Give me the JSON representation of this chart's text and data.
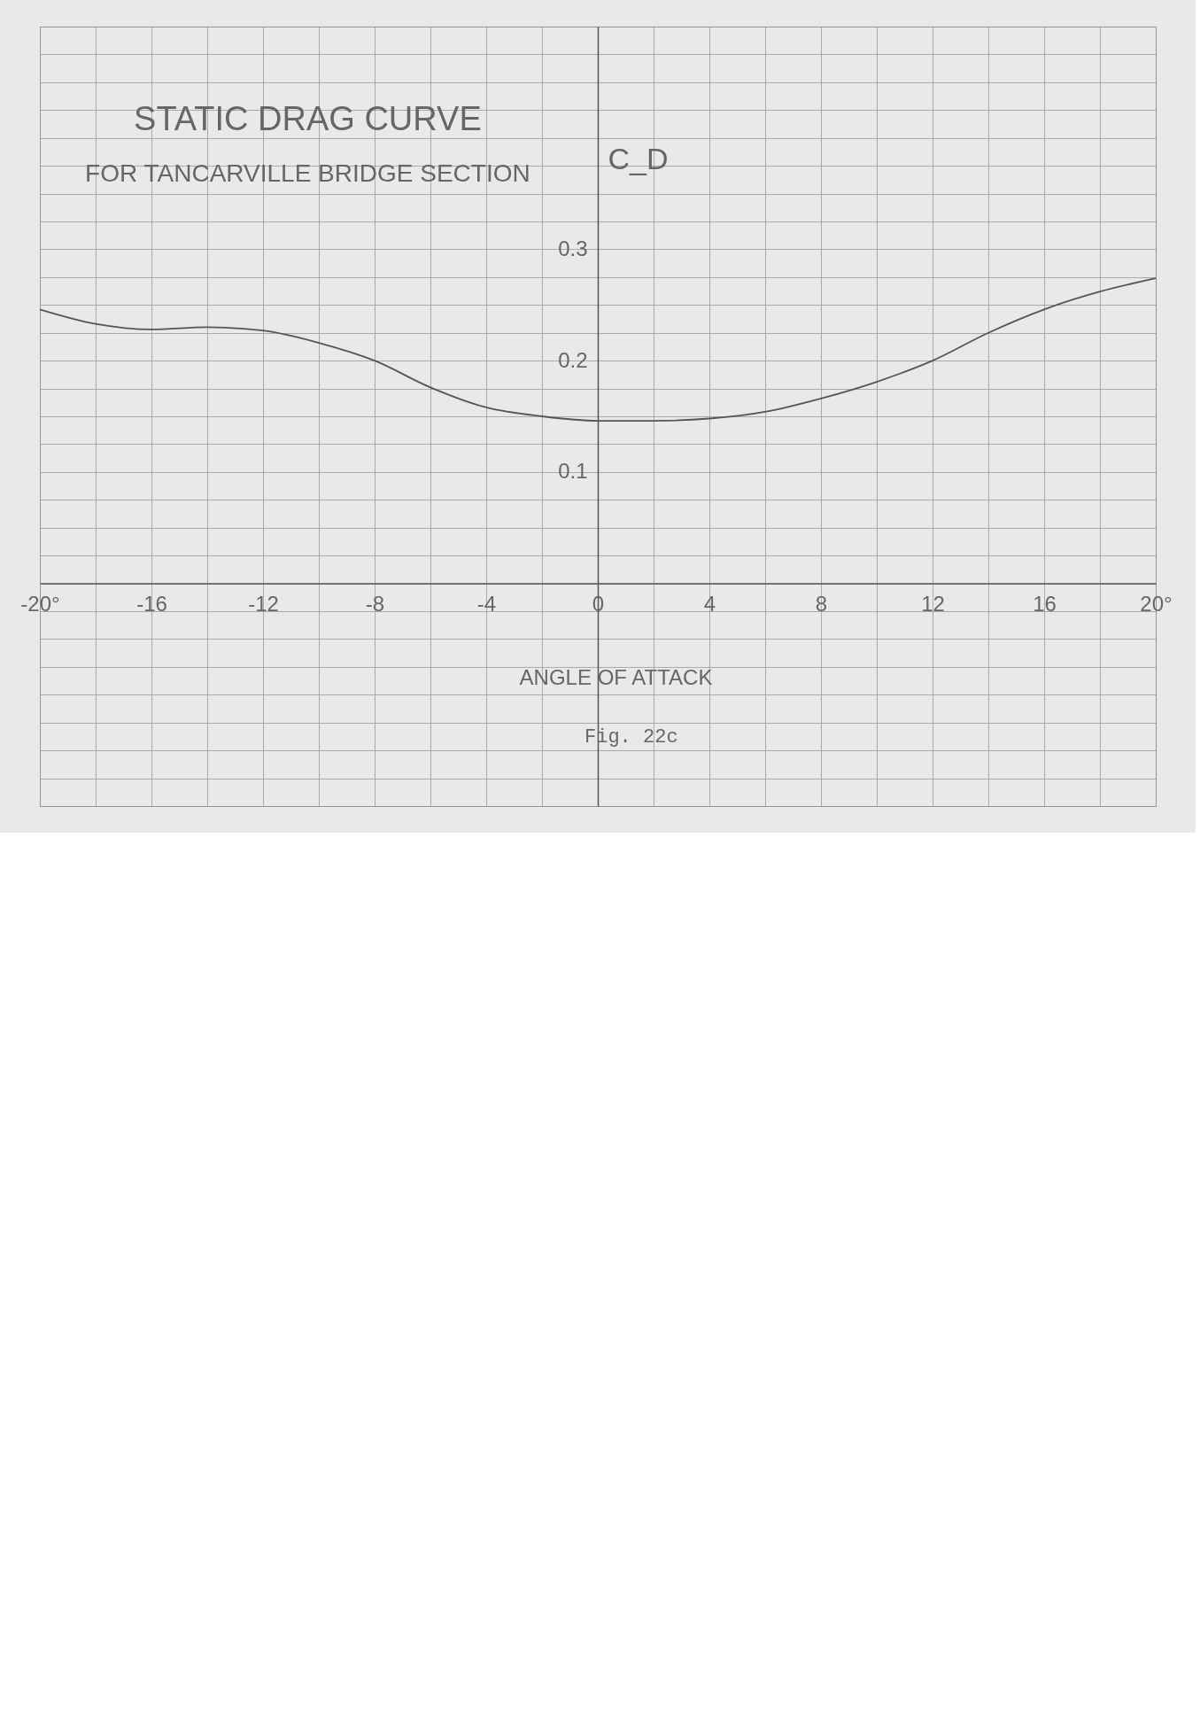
{
  "chart_data": {
    "type": "line",
    "title": "STATIC DRAG CURVE",
    "subtitle": "FOR TANCARVILLE BRIDGE SECTION",
    "xlabel": "ANGLE OF ATTACK",
    "ylabel": "C_D",
    "annotations": [
      "Fig. 22c"
    ],
    "x": [
      -20,
      -18,
      -16,
      -14,
      -12,
      -10,
      -8,
      -6,
      -4,
      -2,
      0,
      2,
      4,
      6,
      8,
      10,
      12,
      14,
      16,
      18,
      20
    ],
    "series": [
      {
        "color": "#555555",
        "values": [
          0.246,
          0.233,
          0.228,
          0.23,
          0.227,
          0.216,
          0.2,
          0.176,
          0.158,
          0.15,
          0.146,
          0.146,
          0.148,
          0.154,
          0.166,
          0.181,
          0.2,
          0.225,
          0.246,
          0.262,
          0.274
        ]
      }
    ],
    "xlim": [
      -20,
      20
    ],
    "xticks": [
      {
        "value": -20,
        "label": "-20°"
      },
      {
        "value": -18,
        "label": null
      },
      -16,
      {
        "value": -14,
        "label": null
      },
      -12,
      {
        "value": -10,
        "label": null
      },
      -8,
      {
        "value": -6,
        "label": null
      },
      -4,
      {
        "value": -2,
        "label": null
      },
      0,
      {
        "value": 2,
        "label": null
      },
      4,
      {
        "value": 6,
        "label": null
      },
      8,
      {
        "value": 10,
        "label": null
      },
      12,
      {
        "value": 14,
        "label": null
      },
      16,
      {
        "value": 18,
        "label": null
      },
      {
        "value": 20,
        "label": "20°"
      }
    ],
    "ylim": [
      -0.2,
      0.5
    ],
    "yticks": [
      {
        "value": -0.2,
        "label": null
      },
      {
        "value": -0.175,
        "label": null
      },
      {
        "value": -0.15,
        "label": null
      },
      {
        "value": -0.125,
        "label": null
      },
      {
        "value": -0.1,
        "label": null
      },
      {
        "value": -0.075,
        "label": null
      },
      {
        "value": -0.05,
        "label": null
      },
      {
        "value": -0.025,
        "label": null
      },
      {
        "value": 0,
        "label": null
      },
      {
        "value": 0.025,
        "label": null
      },
      {
        "value": 0.05,
        "label": null
      },
      {
        "value": 0.075,
        "label": null
      },
      0.1,
      {
        "value": 0.125,
        "label": null
      },
      {
        "value": 0.15,
        "label": null
      },
      {
        "value": 0.175,
        "label": null
      },
      0.2,
      {
        "value": 0.225,
        "label": null
      },
      {
        "value": 0.25,
        "label": null
      },
      {
        "value": 0.275,
        "label": null
      },
      0.3,
      {
        "value": 0.325,
        "label": null
      },
      {
        "value": 0.35,
        "label": null
      },
      {
        "value": 0.375,
        "label": null
      },
      {
        "value": 0.4,
        "label": null
      },
      {
        "value": 0.425,
        "label": null
      },
      {
        "value": 0.45,
        "label": null
      },
      {
        "value": 0.475,
        "label": null
      },
      {
        "value": 0.5,
        "label": null
      }
    ],
    "grid": true,
    "marker": "none",
    "line_style": "solid"
  }
}
